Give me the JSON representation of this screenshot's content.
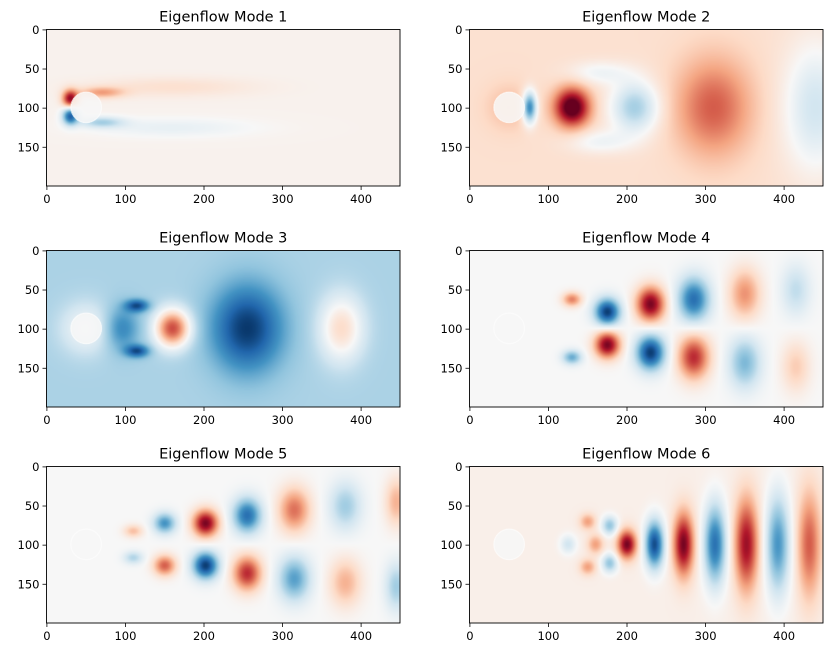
{
  "chart_data": [
    {
      "type": "heatmap",
      "title": "Eigenflow Mode 1",
      "colormap": "RdBu_r",
      "xlim": [
        0,
        449
      ],
      "ylim": [
        199,
        0
      ],
      "xticks": [
        "0",
        "100",
        "200",
        "300",
        "400"
      ],
      "yticks": [
        "0",
        "50",
        "100",
        "150"
      ],
      "background": 0.04,
      "features": [
        {
          "x": 30,
          "y": 88,
          "rx": 10,
          "ry": 11,
          "v": 0.85
        },
        {
          "x": 30,
          "y": 110,
          "rx": 10,
          "ry": 11,
          "v": -0.85
        },
        {
          "x": 70,
          "y": 80,
          "rx": 28,
          "ry": 7,
          "v": 0.35
        },
        {
          "x": 70,
          "y": 118,
          "rx": 28,
          "ry": 7,
          "v": -0.35
        },
        {
          "x": 160,
          "y": 73,
          "rx": 100,
          "ry": 12,
          "v": 0.12
        },
        {
          "x": 160,
          "y": 125,
          "rx": 100,
          "ry": 12,
          "v": -0.12
        }
      ]
    },
    {
      "type": "heatmap",
      "title": "Eigenflow Mode 2",
      "colormap": "RdBu_r",
      "xlim": [
        0,
        449
      ],
      "ylim": [
        199,
        0
      ],
      "xticks": [
        "0",
        "100",
        "200",
        "300",
        "400"
      ],
      "yticks": [
        "0",
        "50",
        "100",
        "150"
      ],
      "background": 0.16,
      "features": [
        {
          "x": 50,
          "y": 99,
          "rx": 30,
          "ry": 30,
          "v": 0.15
        },
        {
          "x": 76,
          "y": 99,
          "rx": 9,
          "ry": 20,
          "v": -0.85
        },
        {
          "x": 130,
          "y": 99,
          "rx": 22,
          "ry": 24,
          "v": 0.98
        },
        {
          "x": 210,
          "y": 99,
          "rx": 30,
          "ry": 33,
          "v": -0.5
        },
        {
          "x": 165,
          "y": 55,
          "rx": 40,
          "ry": 15,
          "v": -0.2
        },
        {
          "x": 165,
          "y": 143,
          "rx": 40,
          "ry": 15,
          "v": -0.2
        },
        {
          "x": 310,
          "y": 99,
          "rx": 48,
          "ry": 62,
          "v": 0.45
        },
        {
          "x": 440,
          "y": 99,
          "rx": 40,
          "ry": 80,
          "v": -0.35
        }
      ]
    },
    {
      "type": "heatmap",
      "title": "Eigenflow Mode 3",
      "colormap": "RdBu_r",
      "xlim": [
        0,
        449
      ],
      "ylim": [
        199,
        0
      ],
      "xticks": [
        "0",
        "100",
        "200",
        "300",
        "400"
      ],
      "yticks": [
        "0",
        "50",
        "100",
        "150"
      ],
      "background": -0.32,
      "features": [
        {
          "x": 50,
          "y": 99,
          "rx": 32,
          "ry": 32,
          "v": 0.3
        },
        {
          "x": 95,
          "y": 99,
          "rx": 22,
          "ry": 28,
          "v": -0.35
        },
        {
          "x": 115,
          "y": 70,
          "rx": 15,
          "ry": 8,
          "v": -0.55
        },
        {
          "x": 115,
          "y": 128,
          "rx": 15,
          "ry": 8,
          "v": -0.55
        },
        {
          "x": 160,
          "y": 99,
          "rx": 22,
          "ry": 24,
          "v": 0.98
        },
        {
          "x": 255,
          "y": 99,
          "rx": 45,
          "ry": 55,
          "v": -0.65
        },
        {
          "x": 375,
          "y": 99,
          "rx": 28,
          "ry": 42,
          "v": 0.5
        }
      ]
    },
    {
      "type": "heatmap",
      "title": "Eigenflow Mode 4",
      "colormap": "RdBu_r",
      "xlim": [
        0,
        449
      ],
      "ylim": [
        199,
        0
      ],
      "xticks": [
        "0",
        "100",
        "200",
        "300",
        "400"
      ],
      "yticks": [
        "0",
        "50",
        "100",
        "150"
      ],
      "background": 0.0,
      "features": [
        {
          "x": 130,
          "y": 62,
          "rx": 12,
          "ry": 9,
          "v": 0.5
        },
        {
          "x": 130,
          "y": 136,
          "rx": 12,
          "ry": 9,
          "v": -0.5
        },
        {
          "x": 175,
          "y": 78,
          "rx": 16,
          "ry": 17,
          "v": -0.95
        },
        {
          "x": 175,
          "y": 120,
          "rx": 16,
          "ry": 17,
          "v": 0.95
        },
        {
          "x": 230,
          "y": 68,
          "rx": 18,
          "ry": 22,
          "v": 0.95
        },
        {
          "x": 230,
          "y": 130,
          "rx": 18,
          "ry": 22,
          "v": -0.95
        },
        {
          "x": 285,
          "y": 62,
          "rx": 20,
          "ry": 28,
          "v": -0.75
        },
        {
          "x": 285,
          "y": 136,
          "rx": 20,
          "ry": 28,
          "v": 0.75
        },
        {
          "x": 350,
          "y": 55,
          "rx": 20,
          "ry": 32,
          "v": 0.45
        },
        {
          "x": 350,
          "y": 143,
          "rx": 20,
          "ry": 32,
          "v": -0.45
        },
        {
          "x": 415,
          "y": 50,
          "rx": 18,
          "ry": 32,
          "v": -0.25
        },
        {
          "x": 415,
          "y": 148,
          "rx": 18,
          "ry": 32,
          "v": 0.25
        }
      ]
    },
    {
      "type": "heatmap",
      "title": "Eigenflow Mode 5",
      "colormap": "RdBu_r",
      "xlim": [
        0,
        449
      ],
      "ylim": [
        199,
        0
      ],
      "xticks": [
        "0",
        "100",
        "200",
        "300",
        "400"
      ],
      "yticks": [
        "0",
        "50",
        "100",
        "150"
      ],
      "background": 0.0,
      "features": [
        {
          "x": 110,
          "y": 82,
          "rx": 12,
          "ry": 8,
          "v": 0.3
        },
        {
          "x": 110,
          "y": 116,
          "rx": 12,
          "ry": 8,
          "v": -0.3
        },
        {
          "x": 150,
          "y": 72,
          "rx": 14,
          "ry": 13,
          "v": -0.6
        },
        {
          "x": 150,
          "y": 126,
          "rx": 14,
          "ry": 13,
          "v": 0.6
        },
        {
          "x": 202,
          "y": 72,
          "rx": 16,
          "ry": 17,
          "v": 0.95
        },
        {
          "x": 202,
          "y": 126,
          "rx": 16,
          "ry": 17,
          "v": -0.95
        },
        {
          "x": 255,
          "y": 62,
          "rx": 18,
          "ry": 22,
          "v": -0.75
        },
        {
          "x": 255,
          "y": 136,
          "rx": 18,
          "ry": 22,
          "v": 0.75
        },
        {
          "x": 315,
          "y": 55,
          "rx": 20,
          "ry": 28,
          "v": 0.55
        },
        {
          "x": 315,
          "y": 143,
          "rx": 20,
          "ry": 28,
          "v": -0.55
        },
        {
          "x": 380,
          "y": 50,
          "rx": 20,
          "ry": 30,
          "v": -0.35
        },
        {
          "x": 380,
          "y": 148,
          "rx": 20,
          "ry": 30,
          "v": 0.35
        },
        {
          "x": 445,
          "y": 45,
          "rx": 14,
          "ry": 30,
          "v": 0.35
        },
        {
          "x": 445,
          "y": 153,
          "rx": 14,
          "ry": 30,
          "v": -0.35
        }
      ]
    },
    {
      "type": "heatmap",
      "title": "Eigenflow Mode 6",
      "colormap": "RdBu_r",
      "xlim": [
        0,
        449
      ],
      "ylim": [
        199,
        0
      ],
      "xticks": [
        "0",
        "100",
        "200",
        "300",
        "400"
      ],
      "yticks": [
        "0",
        "50",
        "100",
        "150"
      ],
      "background": 0.06,
      "features": [
        {
          "x": 125,
          "y": 99,
          "rx": 10,
          "ry": 12,
          "v": -0.25
        },
        {
          "x": 150,
          "y": 70,
          "rx": 10,
          "ry": 10,
          "v": 0.35
        },
        {
          "x": 150,
          "y": 128,
          "rx": 10,
          "ry": 10,
          "v": 0.35
        },
        {
          "x": 160,
          "y": 99,
          "rx": 10,
          "ry": 12,
          "v": 0.35
        },
        {
          "x": 178,
          "y": 75,
          "rx": 10,
          "ry": 12,
          "v": -0.45
        },
        {
          "x": 178,
          "y": 123,
          "rx": 10,
          "ry": 12,
          "v": -0.45
        },
        {
          "x": 200,
          "y": 99,
          "rx": 12,
          "ry": 18,
          "v": 0.9
        },
        {
          "x": 235,
          "y": 99,
          "rx": 12,
          "ry": 30,
          "v": -0.95
        },
        {
          "x": 272,
          "y": 99,
          "rx": 13,
          "ry": 40,
          "v": 0.9
        },
        {
          "x": 312,
          "y": 99,
          "rx": 14,
          "ry": 50,
          "v": -0.8
        },
        {
          "x": 352,
          "y": 99,
          "rx": 15,
          "ry": 58,
          "v": 0.8
        },
        {
          "x": 392,
          "y": 99,
          "rx": 15,
          "ry": 62,
          "v": -0.65
        },
        {
          "x": 432,
          "y": 99,
          "rx": 15,
          "ry": 68,
          "v": 0.55
        }
      ]
    }
  ]
}
